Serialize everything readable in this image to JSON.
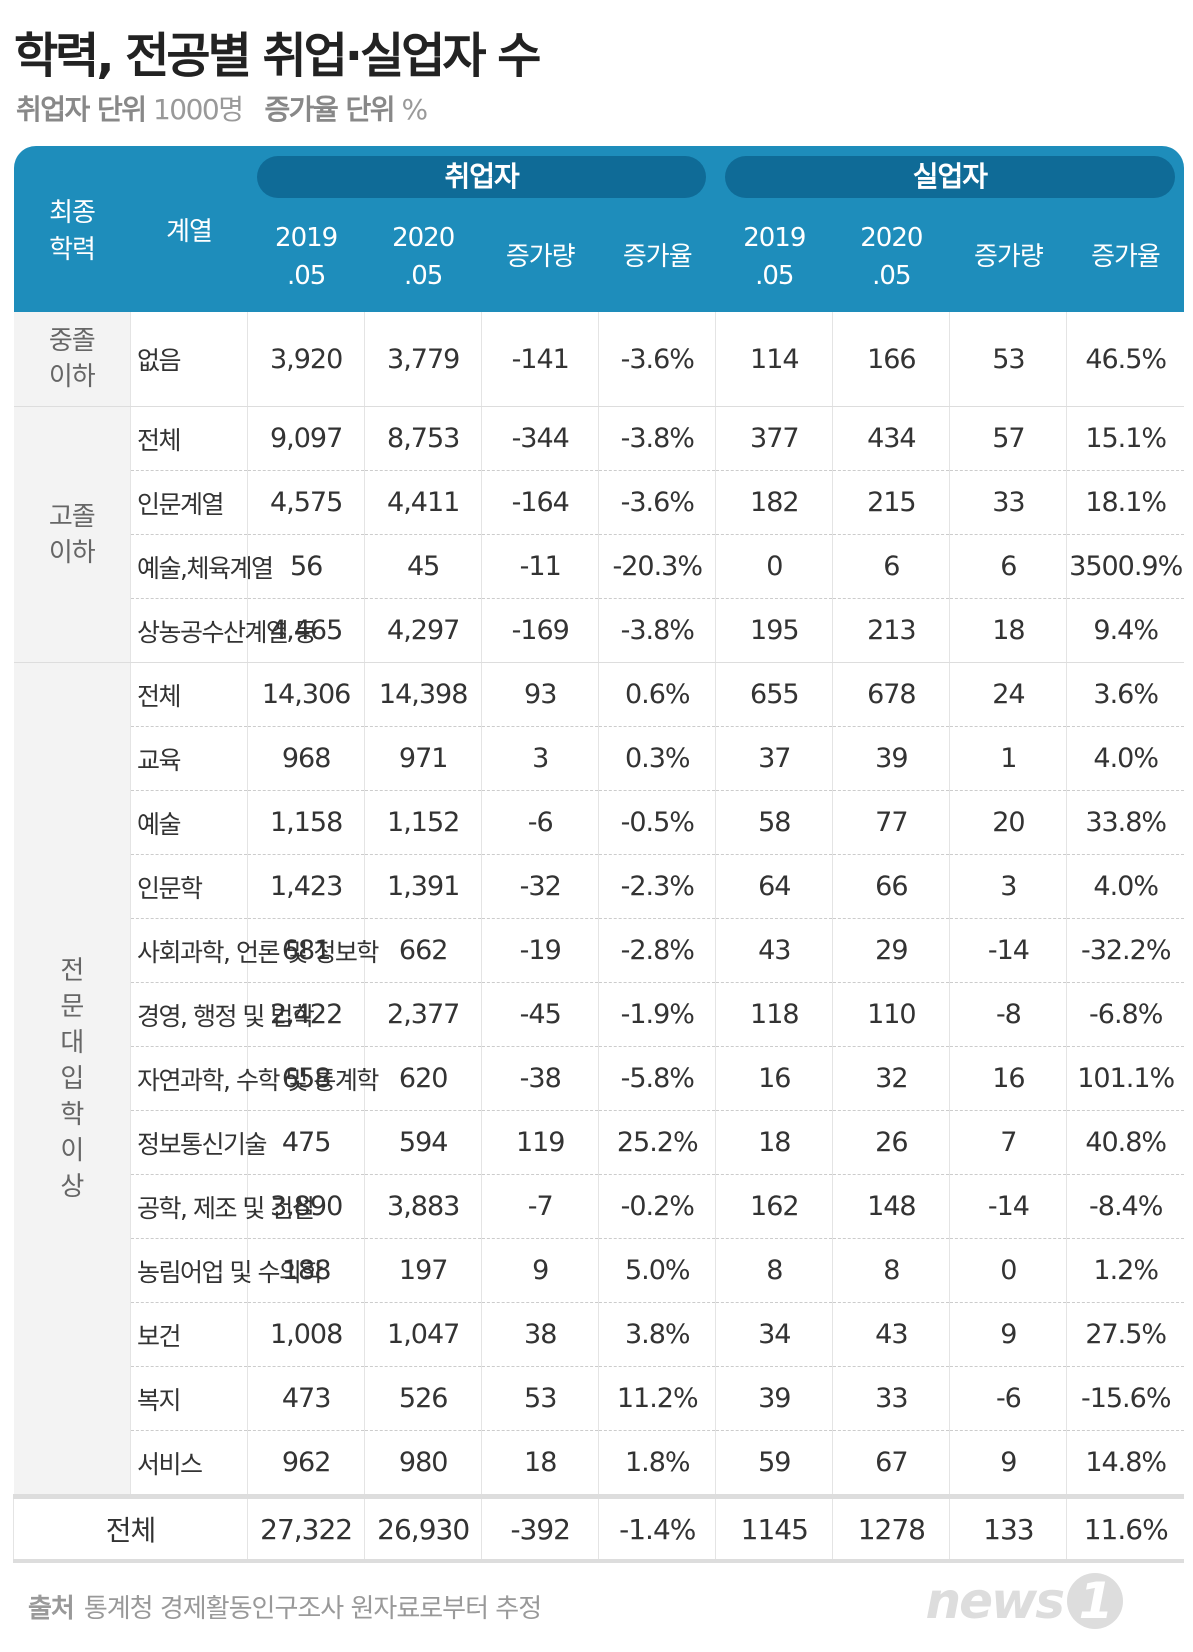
{
  "header": {
    "title": "학력, 전공별 취업·실업자 수",
    "units": [
      {
        "label": "취업자 단위",
        "value": "1000명"
      },
      {
        "label": "증가율 단위",
        "value": "%"
      }
    ]
  },
  "table": {
    "education": [
      "최종",
      "학력"
    ],
    "major": "계열",
    "groups": [
      "취업자",
      "실업자"
    ],
    "subcolumns": [
      [
        "2019",
        ".05"
      ],
      [
        "2020",
        ".05"
      ],
      [
        "증가량"
      ],
      [
        "증가율"
      ]
    ],
    "sections": [
      {
        "label": [
          "중졸",
          "이하"
        ],
        "rows": [
          {
            "major": "없음",
            "values": [
              "3,920",
              "3,779",
              "-141",
              "-3.6%",
              "114",
              "166",
              "53",
              "46.5%"
            ]
          }
        ]
      },
      {
        "label": [
          "고졸",
          "이하"
        ],
        "rows": [
          {
            "major": "전체",
            "values": [
              "9,097",
              "8,753",
              "-344",
              "-3.8%",
              "377",
              "434",
              "57",
              "15.1%"
            ]
          },
          {
            "major": "인문계열",
            "values": [
              "4,575",
              "4,411",
              "-164",
              "-3.6%",
              "182",
              "215",
              "33",
              "18.1%"
            ]
          },
          {
            "major": "예술,체육계열",
            "values": [
              "56",
              "45",
              "-11",
              "-20.3%",
              "0",
              "6",
              "6",
              "3500.9%"
            ]
          },
          {
            "major": "상농공수산계열 등",
            "values": [
              "4,465",
              "4,297",
              "-169",
              "-3.8%",
              "195",
              "213",
              "18",
              "9.4%"
            ]
          }
        ]
      },
      {
        "label": [
          "전",
          "문",
          "대",
          "입",
          "학",
          "이",
          "상"
        ],
        "rows": [
          {
            "major": "전체",
            "values": [
              "14,306",
              "14,398",
              "93",
              "0.6%",
              "655",
              "678",
              "24",
              "3.6%"
            ]
          },
          {
            "major": "교육",
            "values": [
              "968",
              "971",
              "3",
              "0.3%",
              "37",
              "39",
              "1",
              "4.0%"
            ]
          },
          {
            "major": "예술",
            "values": [
              "1,158",
              "1,152",
              "-6",
              "-0.5%",
              "58",
              "77",
              "20",
              "33.8%"
            ]
          },
          {
            "major": "인문학",
            "values": [
              "1,423",
              "1,391",
              "-32",
              "-2.3%",
              "64",
              "66",
              "3",
              "4.0%"
            ]
          },
          {
            "major": "사회과학, 언론 및 정보학",
            "values": [
              "681",
              "662",
              "-19",
              "-2.8%",
              "43",
              "29",
              "-14",
              "-32.2%"
            ]
          },
          {
            "major": "경영, 행정 및 법학",
            "values": [
              "2,422",
              "2,377",
              "-45",
              "-1.9%",
              "118",
              "110",
              "-8",
              "-6.8%"
            ]
          },
          {
            "major": "자연과학, 수학 및 통계학",
            "values": [
              "658",
              "620",
              "-38",
              "-5.8%",
              "16",
              "32",
              "16",
              "101.1%"
            ]
          },
          {
            "major": "정보통신기술",
            "values": [
              "475",
              "594",
              "119",
              "25.2%",
              "18",
              "26",
              "7",
              "40.8%"
            ]
          },
          {
            "major": "공학, 제조 및 건설",
            "values": [
              "3,890",
              "3,883",
              "-7",
              "-0.2%",
              "162",
              "148",
              "-14",
              "-8.4%"
            ]
          },
          {
            "major": "농림어업 및 수의학",
            "values": [
              "188",
              "197",
              "9",
              "5.0%",
              "8",
              "8",
              "0",
              "1.2%"
            ]
          },
          {
            "major": "보건",
            "values": [
              "1,008",
              "1,047",
              "38",
              "3.8%",
              "34",
              "43",
              "9",
              "27.5%"
            ]
          },
          {
            "major": "복지",
            "values": [
              "473",
              "526",
              "53",
              "11.2%",
              "39",
              "33",
              "-6",
              "-15.6%"
            ]
          },
          {
            "major": "서비스",
            "values": [
              "962",
              "980",
              "18",
              "1.8%",
              "59",
              "67",
              "9",
              "14.8%"
            ]
          }
        ]
      }
    ],
    "total": {
      "label": "전체",
      "values": [
        "27,322",
        "26,930",
        "-392",
        "-1.4%",
        "1145",
        "1278",
        "133",
        "11.6%"
      ]
    }
  },
  "footer": {
    "label": "출처",
    "text": "통계청 경제활동인구조사 원자료로부터 추정",
    "logo": "news",
    "logo_mark": "1"
  }
}
